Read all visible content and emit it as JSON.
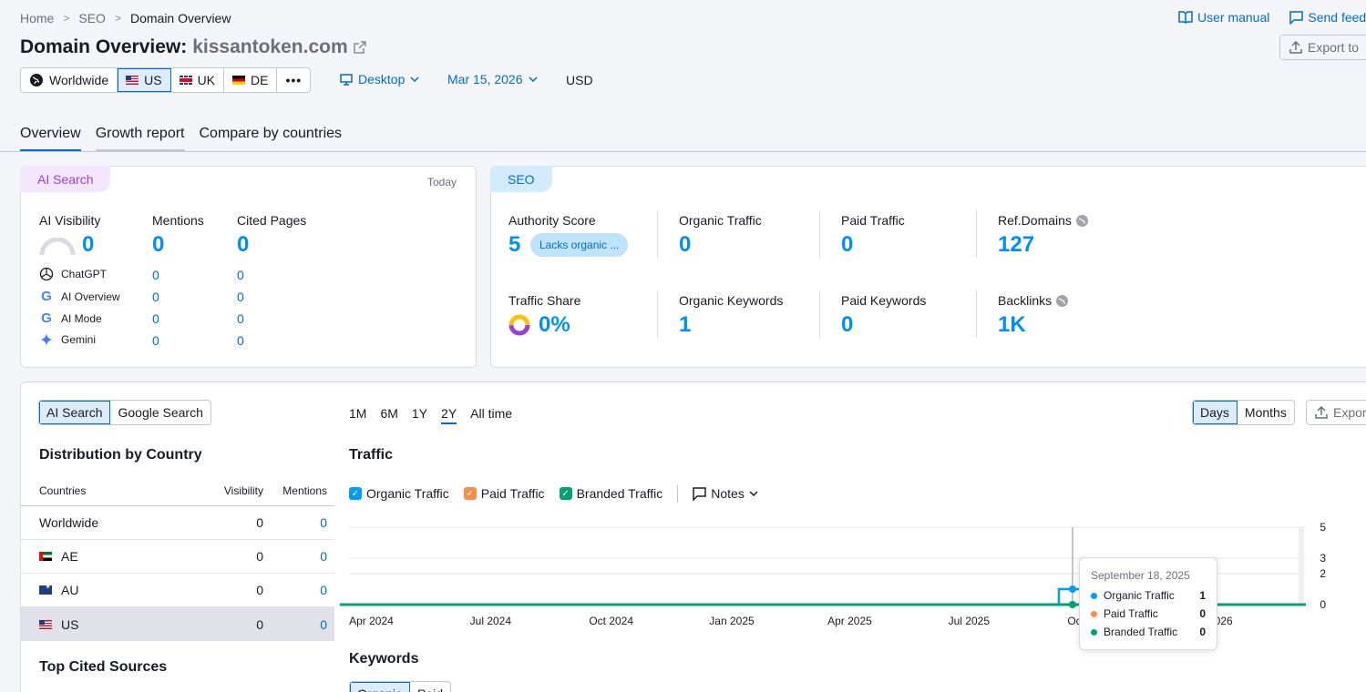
{
  "breadcrumb": [
    "Home",
    "SEO",
    "Domain Overview"
  ],
  "header": {
    "title_prefix": "Domain Overview:",
    "domain": "kissantoken.com",
    "user_manual": "User manual",
    "send_feedback": "Send feed",
    "export": "Export to"
  },
  "databases": [
    {
      "label": "Worldwide",
      "flag": "globe"
    },
    {
      "label": "US",
      "flag": "us",
      "active": true
    },
    {
      "label": "UK",
      "flag": "uk"
    },
    {
      "label": "DE",
      "flag": "de"
    }
  ],
  "controls": {
    "device": "Desktop",
    "date": "Mar 15, 2026",
    "currency": "USD"
  },
  "tabs": [
    "Overview",
    "Growth report",
    "Compare by countries"
  ],
  "ai_card": {
    "pill": "AI Search",
    "today": "Today",
    "visibility_label": "AI Visibility",
    "visibility_value": "0",
    "mentions_label": "Mentions",
    "mentions_value": "0",
    "cited_label": "Cited Pages",
    "cited_value": "0",
    "engines": [
      {
        "name": "ChatGPT",
        "mentions": "0",
        "cited": "0"
      },
      {
        "name": "AI Overview",
        "mentions": "0",
        "cited": "0"
      },
      {
        "name": "AI Mode",
        "mentions": "0",
        "cited": "0"
      },
      {
        "name": "Gemini",
        "mentions": "0",
        "cited": "0"
      }
    ]
  },
  "seo_card": {
    "pill": "SEO",
    "authority_label": "Authority Score",
    "authority_value": "5",
    "authority_badge": "Lacks organic ...",
    "organic_traffic_label": "Organic Traffic",
    "organic_traffic_value": "0",
    "paid_traffic_label": "Paid Traffic",
    "paid_traffic_value": "0",
    "ref_domains_label": "Ref.Domains",
    "ref_domains_value": "127",
    "traffic_share_label": "Traffic Share",
    "traffic_share_value": "0%",
    "organic_keywords_label": "Organic Keywords",
    "organic_keywords_value": "1",
    "paid_keywords_label": "Paid Keywords",
    "paid_keywords_value": "0",
    "backlinks_label": "Backlinks",
    "backlinks_value": "1K"
  },
  "bottom": {
    "search_toggle": [
      "AI Search",
      "Google Search"
    ],
    "dist_title": "Distribution by Country",
    "dist_headers": [
      "Countries",
      "Visibility",
      "Mentions"
    ],
    "dist_rows": [
      {
        "country": "Worldwide",
        "flag": "",
        "visibility": "0",
        "mentions": "0"
      },
      {
        "country": "AE",
        "flag": "ae",
        "visibility": "0",
        "mentions": "0"
      },
      {
        "country": "AU",
        "flag": "au",
        "visibility": "0",
        "mentions": "0"
      },
      {
        "country": "US",
        "flag": "us",
        "visibility": "0",
        "mentions": "0",
        "selected": true
      }
    ],
    "top_cited": "Top Cited Sources",
    "ranges": [
      "1M",
      "6M",
      "1Y",
      "2Y",
      "All time"
    ],
    "active_range": "2Y",
    "period_toggle": [
      "Days",
      "Months"
    ],
    "export": "Expor",
    "traffic_title": "Traffic",
    "legend": [
      {
        "label": "Organic Traffic",
        "color": "#009bff"
      },
      {
        "label": "Paid Traffic",
        "color": "#ff8c43"
      },
      {
        "label": "Branded Traffic",
        "color": "#00a173"
      }
    ],
    "notes": "Notes",
    "keywords_title": "Keywords",
    "keywords_toggle": [
      "Organic",
      "Paid"
    ]
  },
  "chart_data": {
    "type": "line",
    "x_ticks": [
      "Apr 2024",
      "Jul 2024",
      "Oct 2024",
      "Jan 2025",
      "Apr 2025",
      "Jul 2025",
      "Oct 2025",
      "Jan 2026"
    ],
    "y_ticks": [
      0,
      2,
      3,
      5
    ],
    "ylim": [
      0,
      5
    ],
    "series": [
      {
        "name": "Organic Traffic",
        "color": "#009bff",
        "values": [
          {
            "x": "2025-09-18",
            "y": 1
          }
        ]
      },
      {
        "name": "Paid Traffic",
        "color": "#ff8c43",
        "values": [
          {
            "x": "2025-09-18",
            "y": 0
          }
        ]
      },
      {
        "name": "Branded Traffic",
        "color": "#00a173",
        "values": [
          {
            "x": "2025-09-18",
            "y": 0
          }
        ]
      }
    ],
    "tooltip": {
      "date": "September 18, 2025",
      "rows": [
        {
          "label": "Organic Traffic",
          "value": "1",
          "color": "#009bff"
        },
        {
          "label": "Paid Traffic",
          "value": "0",
          "color": "#ff8c43"
        },
        {
          "label": "Branded Traffic",
          "value": "0",
          "color": "#00a173"
        }
      ]
    }
  }
}
